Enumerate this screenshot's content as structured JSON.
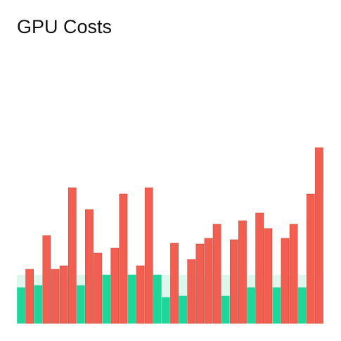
{
  "chart_data": {
    "type": "bar",
    "title": "GPU Costs",
    "values": [
      51,
      77,
      54,
      125,
      77,
      82,
      193,
      54,
      162,
      100,
      69,
      107,
      184,
      69,
      82,
      193,
      69,
      37,
      114,
      39,
      91,
      113,
      121,
      141,
      39,
      119,
      146,
      51,
      157,
      135,
      51,
      121,
      141,
      51,
      184,
      250
    ],
    "ylim": [
      0,
      250
    ],
    "threshold": 69,
    "color": "#f25f50",
    "below_color": "#1ed69a",
    "band_color": "#dcf7eb"
  }
}
